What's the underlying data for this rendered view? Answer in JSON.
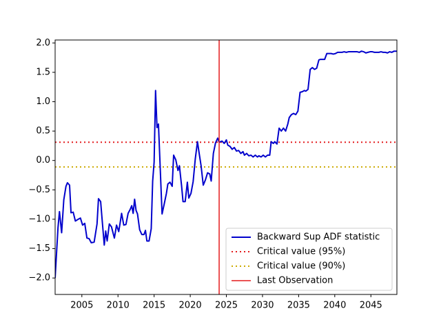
{
  "chart_data": {
    "type": "line",
    "x": [
      2001.3,
      2001.7,
      2001.9,
      2002.2,
      2002.5,
      2002.8,
      2003.0,
      2003.3,
      2003.5,
      2003.8,
      2004.1,
      2004.5,
      2004.8,
      2005.1,
      2005.4,
      2005.7,
      2006.0,
      2006.3,
      2006.7,
      2007.1,
      2007.3,
      2007.6,
      2007.8,
      2008.1,
      2008.3,
      2008.5,
      2008.8,
      2009.1,
      2009.5,
      2009.8,
      2010.1,
      2010.3,
      2010.5,
      2010.8,
      2011.1,
      2011.4,
      2011.7,
      2011.9,
      2012.1,
      2012.3,
      2012.5,
      2012.7,
      2013.0,
      2013.3,
      2013.6,
      2013.8,
      2014.0,
      2014.3,
      2014.6,
      2014.8,
      2015.0,
      2015.2,
      2015.4,
      2015.6,
      2016.1,
      2016.4,
      2016.7,
      2016.9,
      2017.2,
      2017.5,
      2017.7,
      2018.0,
      2018.3,
      2018.5,
      2018.8,
      2019.0,
      2019.3,
      2019.6,
      2019.8,
      2020.1,
      2020.4,
      2020.7,
      2021.0,
      2021.2,
      2021.5,
      2021.8,
      2022.1,
      2022.4,
      2022.7,
      2022.9,
      2023.2,
      2023.5,
      2023.8,
      2024.0,
      2024.4,
      2024.7,
      2025.0,
      2025.2,
      2025.5,
      2025.8,
      2026.1,
      2026.4,
      2026.7,
      2027.0,
      2027.3,
      2027.5,
      2027.8,
      2028.1,
      2028.4,
      2028.7,
      2029.0,
      2029.3,
      2029.5,
      2029.8,
      2030.1,
      2030.4,
      2030.7,
      2031.0,
      2031.2,
      2031.5,
      2031.7,
      2032.0,
      2032.3,
      2032.6,
      2032.9,
      2033.2,
      2033.5,
      2033.7,
      2034.0,
      2034.3,
      2034.6,
      2034.9,
      2035.2,
      2035.5,
      2035.8,
      2036.0,
      2036.3,
      2036.6,
      2036.9,
      2037.2,
      2037.5,
      2037.8,
      2038.0,
      2038.3,
      2038.6,
      2038.9,
      2039.2,
      2039.5,
      2039.8,
      2040.1,
      2040.4,
      2040.7,
      2041.0,
      2041.3,
      2041.6,
      2041.9,
      2042.2,
      2042.5,
      2042.8,
      2043.1,
      2043.4,
      2043.7,
      2044.0,
      2044.3,
      2044.6,
      2044.9,
      2045.2,
      2045.5,
      2045.8,
      2046.1,
      2046.4,
      2046.7,
      2047.0,
      2047.3,
      2047.6,
      2047.9,
      2048.2,
      2048.6
    ],
    "series": [
      {
        "name": "Backward Sup ADF statistic",
        "color": "#0000cc",
        "values": [
          -2.0,
          -1.14,
          -0.87,
          -1.23,
          -0.67,
          -0.44,
          -0.38,
          -0.42,
          -0.89,
          -0.88,
          -1.03,
          -1.0,
          -0.98,
          -1.1,
          -1.07,
          -1.32,
          -1.33,
          -1.4,
          -1.39,
          -1.08,
          -0.65,
          -0.7,
          -1.0,
          -1.44,
          -1.2,
          -1.37,
          -1.08,
          -1.13,
          -1.32,
          -1.1,
          -1.21,
          -1.06,
          -0.9,
          -1.1,
          -1.09,
          -0.9,
          -0.83,
          -0.77,
          -0.9,
          -0.66,
          -0.85,
          -0.91,
          -1.18,
          -1.26,
          -1.26,
          -1.19,
          -1.37,
          -1.37,
          -1.16,
          -0.35,
          -0.03,
          1.19,
          0.56,
          0.62,
          -0.91,
          -0.74,
          -0.56,
          -0.4,
          -0.37,
          -0.44,
          0.09,
          0.01,
          -0.17,
          -0.09,
          -0.43,
          -0.7,
          -0.7,
          -0.37,
          -0.64,
          -0.56,
          -0.36,
          0.03,
          0.32,
          0.15,
          -0.09,
          -0.42,
          -0.33,
          -0.21,
          -0.23,
          -0.35,
          0.12,
          0.3,
          0.38,
          0.31,
          0.33,
          0.29,
          0.35,
          0.26,
          0.24,
          0.19,
          0.22,
          0.16,
          0.17,
          0.12,
          0.15,
          0.09,
          0.12,
          0.08,
          0.09,
          0.06,
          0.09,
          0.06,
          0.08,
          0.06,
          0.09,
          0.06,
          0.09,
          0.09,
          0.32,
          0.29,
          0.32,
          0.28,
          0.55,
          0.5,
          0.55,
          0.5,
          0.62,
          0.73,
          0.78,
          0.8,
          0.78,
          0.84,
          1.16,
          1.17,
          1.19,
          1.18,
          1.21,
          1.55,
          1.58,
          1.55,
          1.57,
          1.71,
          1.72,
          1.72,
          1.72,
          1.82,
          1.82,
          1.82,
          1.81,
          1.82,
          1.84,
          1.84,
          1.84,
          1.85,
          1.84,
          1.85,
          1.85,
          1.85,
          1.85,
          1.85,
          1.84,
          1.86,
          1.85,
          1.83,
          1.84,
          1.85,
          1.85,
          1.84,
          1.84,
          1.84,
          1.85,
          1.84,
          1.84,
          1.83,
          1.85,
          1.84,
          1.86,
          1.86
        ]
      }
    ],
    "reference_lines": [
      {
        "name": "Critical value (95%)",
        "value": 0.31,
        "color": "#e41a1c",
        "linestyle": "dotted"
      },
      {
        "name": "Critical value (90%)",
        "value": -0.11,
        "color": "#ccaa00",
        "linestyle": "dotted"
      }
    ],
    "vertical_lines": [
      {
        "name": "Last Observation",
        "x": 2024.0,
        "color": "#e41a1c"
      }
    ],
    "xlim": [
      2001.3,
      2048.6
    ],
    "ylim": [
      -2.28,
      2.05
    ],
    "xticks": [
      2005,
      2010,
      2015,
      2020,
      2025,
      2030,
      2035,
      2040,
      2045
    ],
    "yticks": [
      {
        "value": -2,
        "label": "−2.0"
      },
      {
        "value": -1.5,
        "label": "−1.5"
      },
      {
        "value": -1,
        "label": "−1.0"
      },
      {
        "value": -0.5,
        "label": "−0.5"
      },
      {
        "value": 0,
        "label": "0.0"
      },
      {
        "value": 0.5,
        "label": "0.5"
      },
      {
        "value": 1,
        "label": "1.0"
      },
      {
        "value": 1.5,
        "label": "1.5"
      },
      {
        "value": 2,
        "label": "2.0"
      }
    ],
    "legend": "lower right"
  }
}
